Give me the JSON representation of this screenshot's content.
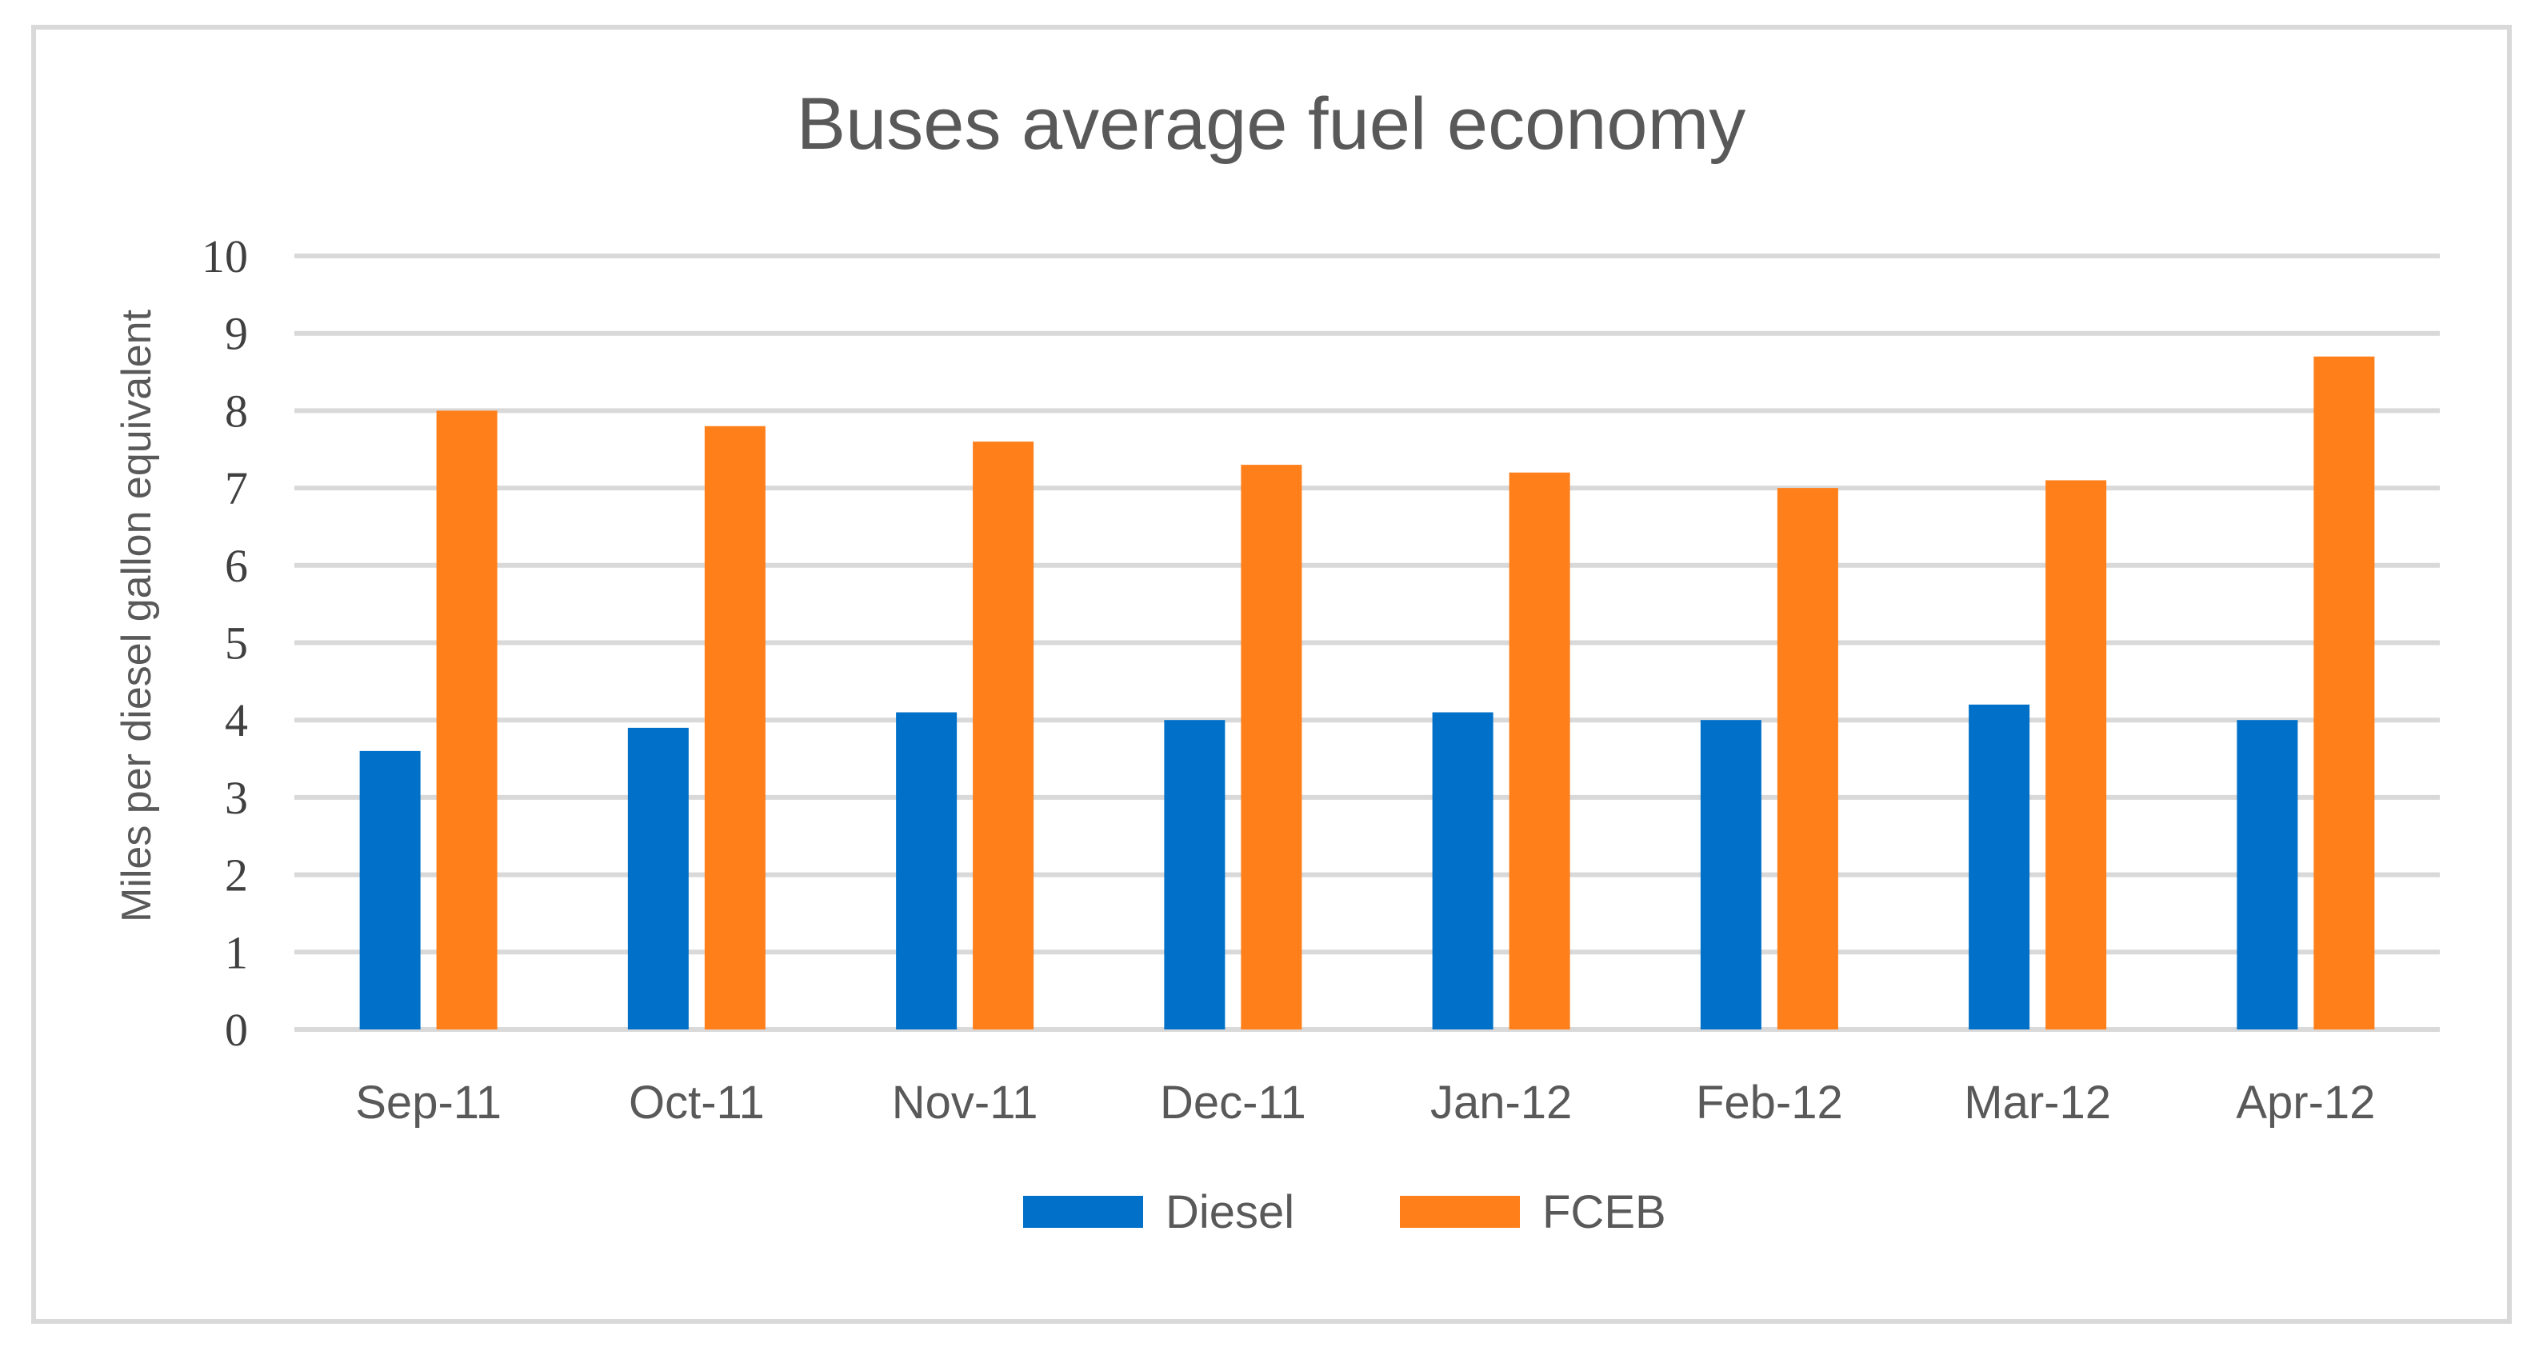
{
  "chart_data": {
    "type": "bar",
    "title": "Buses average fuel economy",
    "xlabel": "",
    "ylabel": "Miles per diesel gallon equivalent",
    "categories": [
      "Sep-11",
      "Oct-11",
      "Nov-11",
      "Dec-11",
      "Jan-12",
      "Feb-12",
      "Mar-12",
      "Apr-12"
    ],
    "series": [
      {
        "name": "Diesel",
        "color": "#0070C8",
        "values": [
          3.6,
          3.9,
          4.1,
          4.0,
          4.1,
          4.0,
          4.2,
          4.0
        ]
      },
      {
        "name": "FCEB",
        "color": "#FF7F1A",
        "values": [
          8.0,
          7.8,
          7.6,
          7.3,
          7.2,
          7.0,
          7.1,
          8.7
        ]
      }
    ],
    "ylim": [
      0,
      10
    ],
    "yticks": [
      "0",
      "1",
      "2",
      "3",
      "4",
      "5",
      "6",
      "7",
      "8",
      "9",
      "10"
    ],
    "grid": true,
    "legend_position": "bottom"
  }
}
